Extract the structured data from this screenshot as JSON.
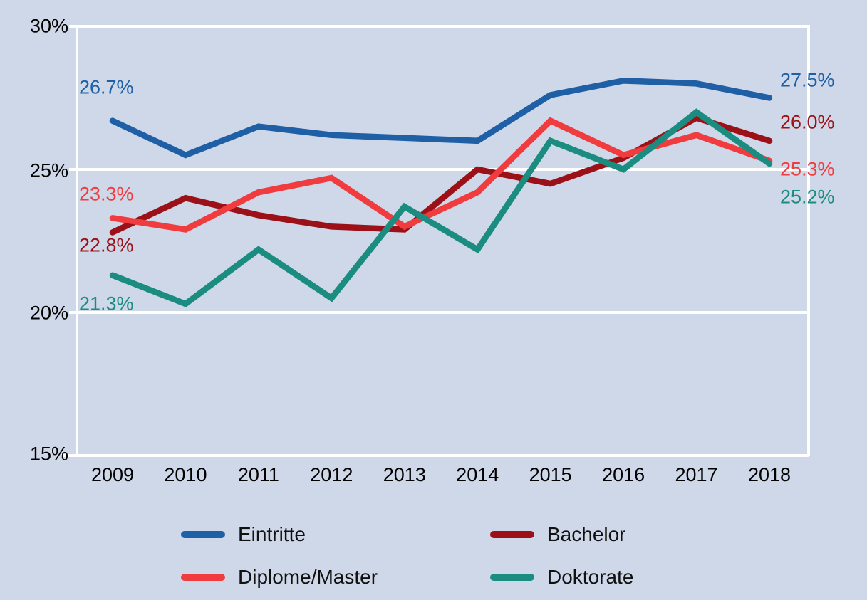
{
  "chart_data": {
    "type": "line",
    "title": "",
    "xlabel": "",
    "ylabel": "",
    "x": [
      "2009",
      "2010",
      "2011",
      "2012",
      "2013",
      "2014",
      "2015",
      "2016",
      "2017",
      "2018"
    ],
    "y_ticks": [
      {
        "label": "30%",
        "value": 30
      },
      {
        "label": "25%",
        "value": 25
      },
      {
        "label": "20%",
        "value": 20
      },
      {
        "label": "15%",
        "value": 15
      }
    ],
    "ylim": [
      15,
      30
    ],
    "grid": "horizontal-white",
    "legend_position": "bottom",
    "series": [
      {
        "name": "Eintritte",
        "color": "#1e5fa6",
        "values": [
          26.7,
          25.5,
          26.5,
          26.2,
          26.1,
          26.0,
          27.6,
          28.1,
          28.0,
          27.5
        ],
        "start_label": "26.7%",
        "end_label": "27.5%"
      },
      {
        "name": "Bachelor",
        "color": "#9c1118",
        "values": [
          22.8,
          24.0,
          23.4,
          23.0,
          22.9,
          25.0,
          24.5,
          25.4,
          26.8,
          26.0
        ],
        "start_label": "22.8%",
        "end_label": "26.0%"
      },
      {
        "name": "Diplome/Master",
        "color": "#f03c3e",
        "values": [
          23.3,
          22.9,
          24.2,
          24.7,
          23.0,
          24.2,
          26.7,
          25.5,
          26.2,
          25.3
        ],
        "start_label": "23.3%",
        "end_label": "25.3%"
      },
      {
        "name": "Doktorate",
        "color": "#1b8c80",
        "values": [
          21.3,
          20.3,
          22.2,
          20.5,
          23.7,
          22.2,
          26.0,
          25.0,
          27.0,
          25.2
        ],
        "start_label": "21.3%",
        "end_label": "25.2%"
      }
    ]
  },
  "colors": {
    "background": "#cfd8e8",
    "grid": "#ffffff",
    "axis_text": "#000000"
  }
}
